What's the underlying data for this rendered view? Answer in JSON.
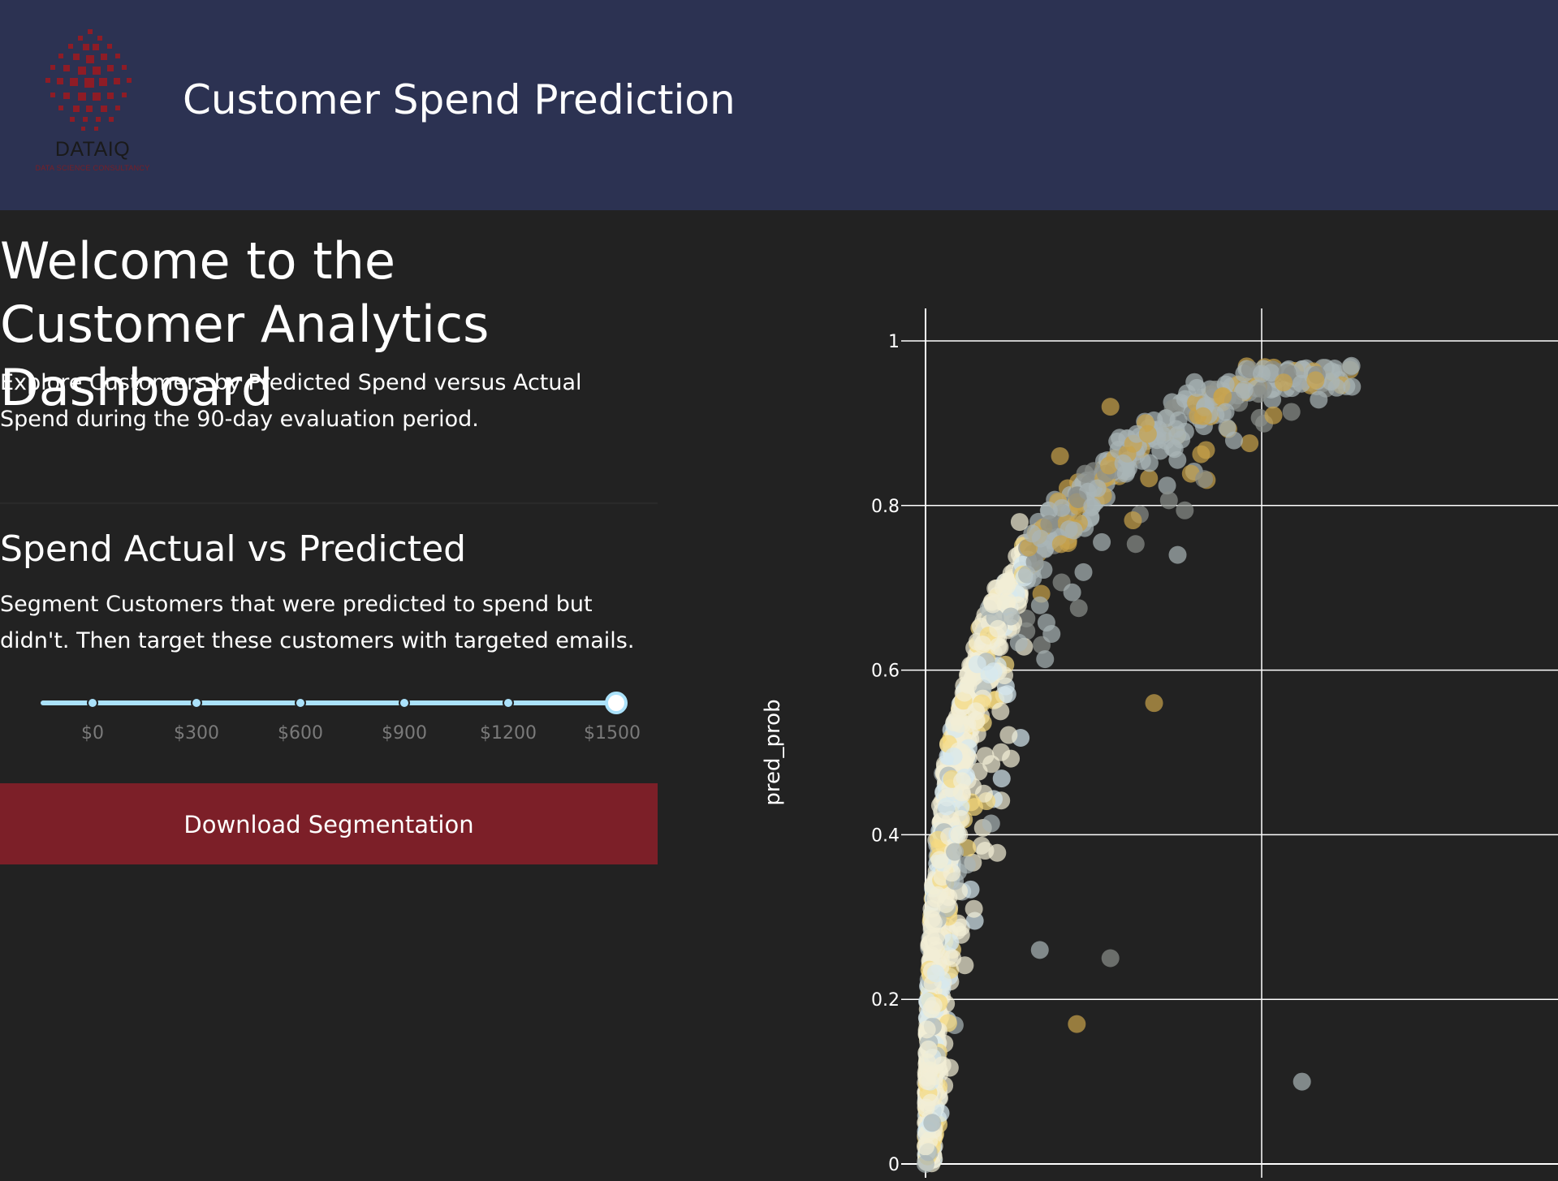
{
  "header": {
    "title": "Customer Spend Prediction",
    "logo_text": "DATAIQ",
    "logo_subtitle": "DATA SCIENCE CONSULTANCY",
    "logo_color": "#7c1f28"
  },
  "main": {
    "welcome_title": "Welcome to the Customer Analytics Dashboard",
    "intro_text": "Explore Customers by Predicted Spend versus Actual Spend during the 90-day evaluation period.",
    "section_title": "Spend Actual vs Predicted",
    "section_description": "Segment Customers that were predicted to spend but didn't. Then target these customers with targeted emails.",
    "download_button": "Download Segmentation",
    "button_color": "#7c1f28"
  },
  "slider": {
    "marks": [
      "$0",
      "$300",
      "$600",
      "$900",
      "$1200",
      "$1500"
    ],
    "value": "$1500",
    "color": "#abe2fb"
  },
  "chart_data": {
    "type": "scatter",
    "ylabel": "pred_prob",
    "ylim": [
      0,
      1.02
    ],
    "yticks": [
      "0",
      "0.2",
      "0.4",
      "0.6",
      "0.8",
      "1"
    ],
    "x_unit_note": "",
    "grid": true,
    "colors": [
      "#f2eed6",
      "#d6e8f0",
      "#f5d87e",
      "#c9a24a",
      "#aab5b6",
      "#8a8f8a"
    ],
    "sample_points": [
      {
        "x": 0.0,
        "y": 0.0
      },
      {
        "x": 0.02,
        "y": 0.05
      },
      {
        "x": 0.05,
        "y": 0.12
      },
      {
        "x": 0.08,
        "y": 0.25
      },
      {
        "x": 0.1,
        "y": 0.4
      },
      {
        "x": 0.15,
        "y": 0.55
      },
      {
        "x": 0.2,
        "y": 0.68
      },
      {
        "x": 0.28,
        "y": 0.78
      },
      {
        "x": 0.4,
        "y": 0.86
      },
      {
        "x": 0.55,
        "y": 0.92
      },
      {
        "x": 0.8,
        "y": 0.95
      },
      {
        "x": 1.0,
        "y": 0.96
      },
      {
        "x": 0.34,
        "y": 0.26
      },
      {
        "x": 0.55,
        "y": 0.25
      },
      {
        "x": 0.45,
        "y": 0.17
      },
      {
        "x": 1.12,
        "y": 0.1
      },
      {
        "x": 0.75,
        "y": 0.74
      },
      {
        "x": 0.68,
        "y": 0.56
      }
    ]
  }
}
